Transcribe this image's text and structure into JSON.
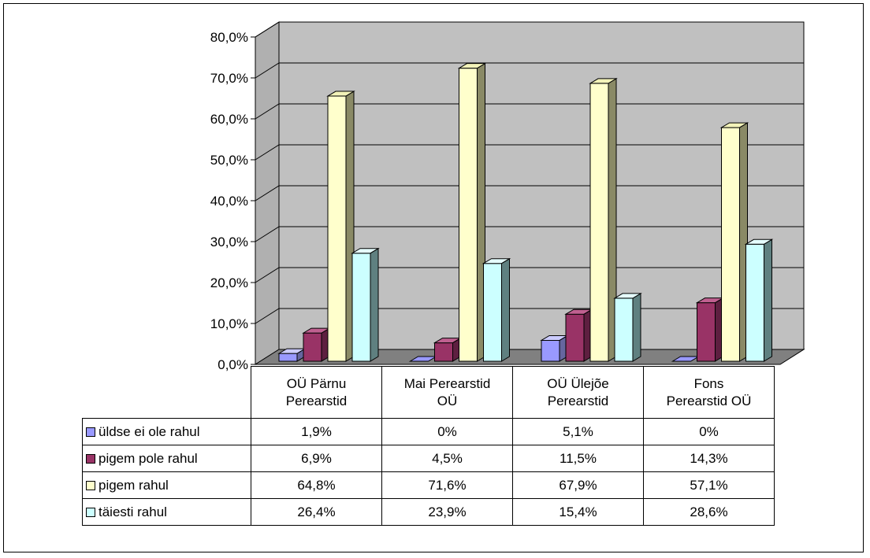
{
  "chart_data": {
    "type": "bar",
    "categories": [
      "OÜ Pärnu Perearstid",
      "Mai Perearstid OÜ",
      "OÜ Ülejõe Perearstid",
      "Fons Perearstid OÜ"
    ],
    "category_lines": [
      [
        "OÜ Pärnu",
        "Perearstid"
      ],
      [
        "Mai Perearstid",
        "OÜ"
      ],
      [
        "OÜ Ülejõe",
        "Perearstid"
      ],
      [
        "Fons",
        "Perearstid OÜ"
      ]
    ],
    "series": [
      {
        "name": "üldse ei ole rahul",
        "values": [
          1.9,
          0,
          5.1,
          0
        ],
        "labels": [
          "1,9%",
          "0%",
          "5,1%",
          "0%"
        ],
        "color": "#9999ff",
        "top_color": "#ccccff",
        "side_color": "#66669f"
      },
      {
        "name": "pigem pole rahul",
        "values": [
          6.9,
          4.5,
          11.5,
          14.3
        ],
        "labels": [
          "6,9%",
          "4,5%",
          "11,5%",
          "14,3%"
        ],
        "color": "#993366",
        "top_color": "#c06090",
        "side_color": "#5e1f40"
      },
      {
        "name": "pigem rahul",
        "values": [
          64.8,
          71.6,
          67.9,
          57.1
        ],
        "labels": [
          "64,8%",
          "71,6%",
          "67,9%",
          "57,1%"
        ],
        "color": "#ffffcc",
        "top_color": "#f2f2b8",
        "side_color": "#8a8a66"
      },
      {
        "name": "täiesti rahul",
        "values": [
          26.4,
          23.9,
          15.4,
          28.6
        ],
        "labels": [
          "26,4%",
          "23,9%",
          "15,4%",
          "28,6%"
        ],
        "color": "#ccffff",
        "top_color": "#e6ffff",
        "side_color": "#5f8080"
      }
    ],
    "ylim": [
      0,
      80
    ],
    "yticks": [
      "0,0%",
      "10,0%",
      "20,0%",
      "30,0%",
      "40,0%",
      "50,0%",
      "60,0%",
      "70,0%",
      "80,0%"
    ],
    "grid": true,
    "wall_color": "#c0c0c0",
    "floor_color": "#808080",
    "legend": "data-table"
  }
}
